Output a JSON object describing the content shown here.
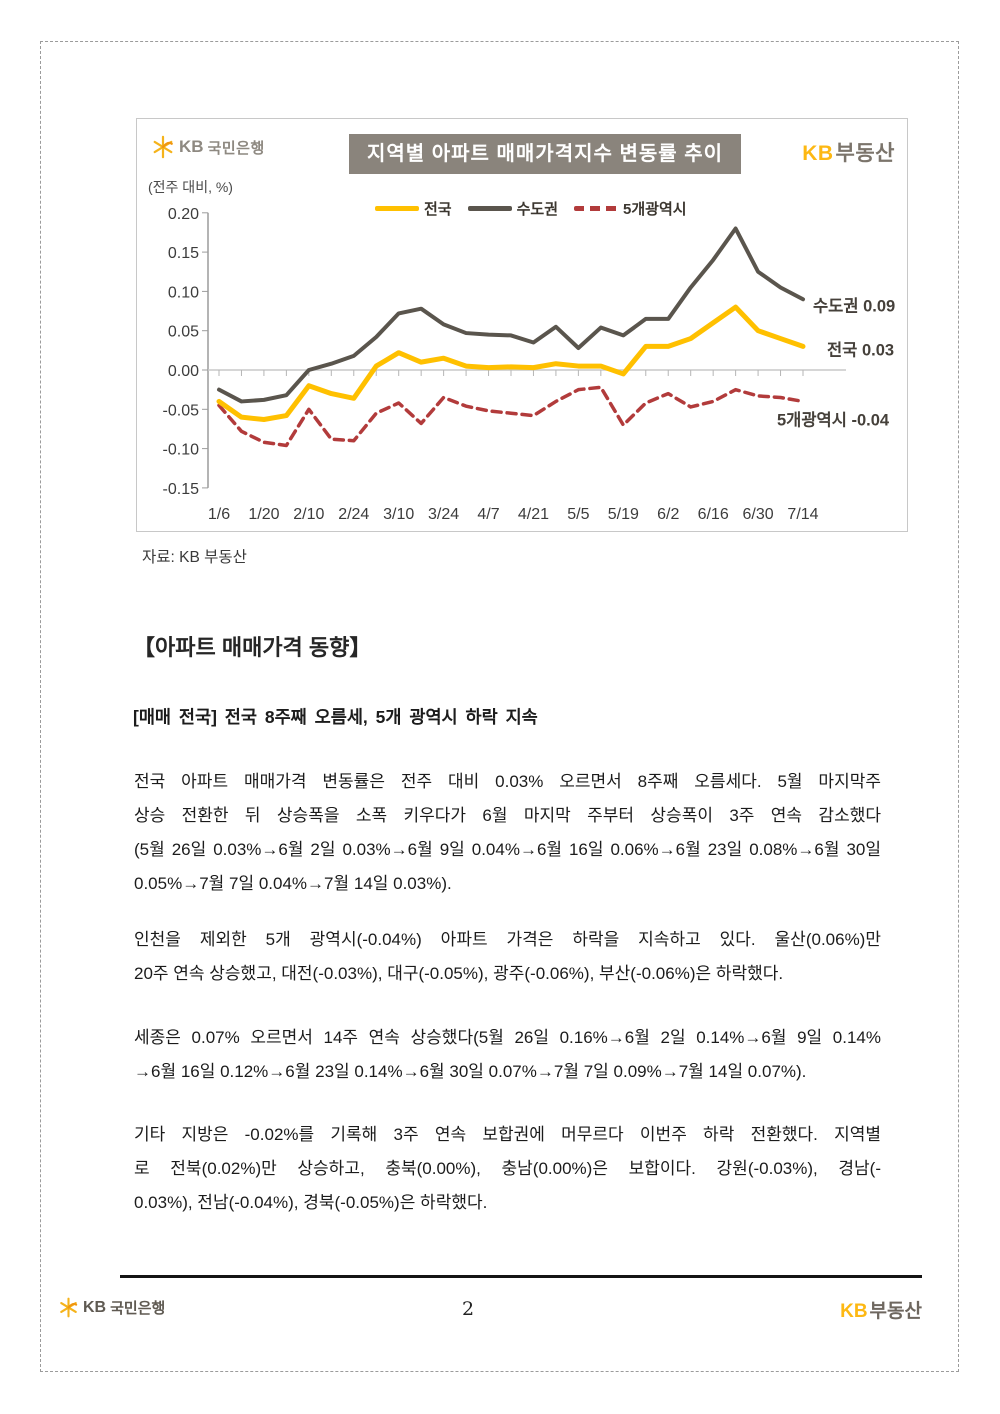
{
  "chart": {
    "title": "지역별 아파트 매매가격지수 변동률 추이",
    "unit_label": "(전주 대비, %)",
    "source": "자료: KB 부동산",
    "bank_logo": {
      "kb": "KB",
      "name": "국민은행"
    },
    "brand_logo": {
      "kb": "KB",
      "suffix": "부동산"
    }
  },
  "chart_data": {
    "type": "line",
    "title": "지역별 아파트 매매가격지수 변동률 추이",
    "unit_label": "(전주 대비, %)",
    "x": [
      "1/6",
      "1/13",
      "1/20",
      "2/3",
      "2/10",
      "2/17",
      "2/24",
      "3/3",
      "3/10",
      "3/17",
      "3/24",
      "3/31",
      "4/7",
      "4/14",
      "4/21",
      "4/28",
      "5/5",
      "5/12",
      "5/19",
      "5/26",
      "6/2",
      "6/9",
      "6/16",
      "6/23",
      "6/30",
      "7/7",
      "7/14"
    ],
    "x_tick_labels": [
      "1/6",
      "1/20",
      "2/10",
      "2/24",
      "3/10",
      "3/24",
      "4/7",
      "4/21",
      "5/5",
      "5/19",
      "6/2",
      "6/16",
      "6/30",
      "7/14"
    ],
    "ylim": [
      -0.15,
      0.2
    ],
    "y_ticks": [
      "0.20",
      "0.15",
      "0.10",
      "0.05",
      "0.00",
      "-0.05",
      "-0.10",
      "-0.15"
    ],
    "grid": "zero-line-only",
    "legend_position": "top-center",
    "series": [
      {
        "name": "전국",
        "color": "#FFC000",
        "style": "solid",
        "end_label": "전국 0.03",
        "values": [
          -0.04,
          -0.06,
          -0.063,
          -0.058,
          -0.02,
          -0.03,
          -0.036,
          0.005,
          0.022,
          0.01,
          0.015,
          0.005,
          0.003,
          0.004,
          0.003,
          0.008,
          0.005,
          0.005,
          -0.005,
          0.03,
          0.03,
          0.04,
          0.06,
          0.08,
          0.05,
          0.04,
          0.03
        ]
      },
      {
        "name": "수도권",
        "color": "#5A554D",
        "style": "solid",
        "end_label": "수도권 0.09",
        "values": [
          -0.025,
          -0.04,
          -0.038,
          -0.032,
          0.0,
          0.008,
          0.018,
          0.042,
          0.072,
          0.078,
          0.058,
          0.047,
          0.045,
          0.044,
          0.035,
          0.055,
          0.028,
          0.054,
          0.044,
          0.065,
          0.065,
          0.105,
          0.14,
          0.18,
          0.125,
          0.105,
          0.09
        ]
      },
      {
        "name": "5개광역시",
        "color": "#B23B3B",
        "style": "dashed",
        "end_label": "5개광역시 -0.04",
        "values": [
          -0.045,
          -0.078,
          -0.092,
          -0.096,
          -0.05,
          -0.088,
          -0.09,
          -0.055,
          -0.042,
          -0.068,
          -0.035,
          -0.046,
          -0.052,
          -0.055,
          -0.058,
          -0.04,
          -0.025,
          -0.022,
          -0.07,
          -0.042,
          -0.03,
          -0.047,
          -0.04,
          -0.025,
          -0.033,
          -0.035,
          -0.04
        ]
      }
    ]
  },
  "article": {
    "section_heading": "【아파트 매매가격 동향】",
    "subheading": "[매매 전국] 전국 8주째 오름세, 5개 광역시 하락 지속",
    "paragraphs": [
      {
        "lines": [
          "전국 아파트 매매가격 변동률은 전주 대비 0.03% 오르면서 8주째 오름세다. 5월 마지막주",
          "상승 전환한 뒤 상승폭을 소폭 키우다가 6월 마지막 주부터 상승폭이 3주 연속 감소했다",
          "(5월 26일 0.03%→6월 2일 0.03%→6월 9일 0.04%→6월 16일 0.06%→6월 23일 0.08%→6월 30일",
          "0.05%→7월 7일 0.04%→7월 14일 0.03%)."
        ]
      },
      {
        "lines": [
          "인천을 제외한 5개 광역시(-0.04%) 아파트 가격은 하락을 지속하고 있다. 울산(0.06%)만",
          "20주 연속 상승했고, 대전(-0.03%), 대구(-0.05%), 광주(-0.06%), 부산(-0.06%)은 하락했다."
        ]
      },
      {
        "lines": [
          "세종은 0.07% 오르면서 14주 연속 상승했다(5월 26일 0.16%→6월 2일 0.14%→6월 9일 0.14%",
          "→6월 16일 0.12%→6월 23일 0.14%→6월 30일 0.07%→7월 7일 0.09%→7월 14일 0.07%)."
        ]
      },
      {
        "lines": [
          "기타 지방은 -0.02%를 기록해 3주 연속 보합권에 머무르다 이번주 하락 전환했다. 지역별",
          "로 전북(0.02%)만 상승하고, 충북(0.00%), 충남(0.00%)은 보합이다. 강원(-0.03%), 경남(-",
          "0.03%), 전남(-0.04%), 경북(-0.05%)은 하락했다."
        ]
      }
    ]
  },
  "footer": {
    "bank_logo": {
      "kb": "KB",
      "name": "국민은행"
    },
    "page_number": "2",
    "brand_logo": {
      "kb": "KB",
      "suffix": "부동산"
    }
  }
}
